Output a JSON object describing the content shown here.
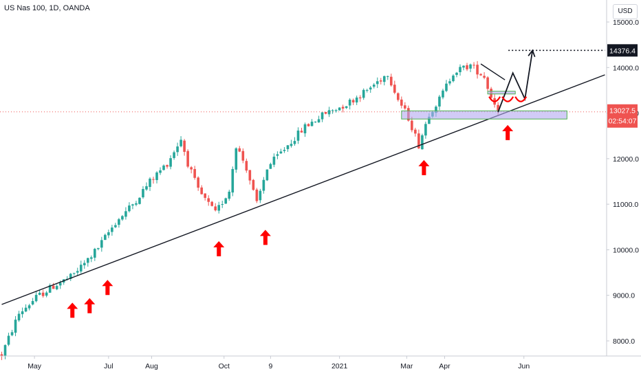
{
  "header": {
    "symbol": "US Nas 100, 1D, OANDA",
    "currency": "USD"
  },
  "chart_data": {
    "type": "candlestick",
    "y_axis": {
      "ticks": [
        15000,
        14000,
        13000,
        12000,
        11000,
        10000,
        9000,
        8000
      ],
      "labels": [
        "15000.0",
        "14000.0",
        "13000.0",
        "12000.0",
        "11000.0",
        "10000.0",
        "9000.0",
        "8000.0"
      ]
    },
    "x_axis": {
      "labels": [
        "May",
        "Jul",
        "Aug",
        "Oct",
        "9",
        "2021",
        "Mar",
        "Apr",
        "Jun"
      ]
    },
    "price_path": [
      [
        0,
        7700
      ],
      [
        5,
        8600
      ],
      [
        10,
        8950
      ],
      [
        15,
        9200
      ],
      [
        20,
        9400
      ],
      [
        24,
        9700
      ],
      [
        28,
        10050
      ],
      [
        33,
        10600
      ],
      [
        38,
        11000
      ],
      [
        43,
        11500
      ],
      [
        48,
        11900
      ],
      [
        52,
        12430
      ],
      [
        54,
        11900
      ],
      [
        57,
        11300
      ],
      [
        62,
        10800
      ],
      [
        66,
        11300
      ],
      [
        68,
        12300
      ],
      [
        71,
        11800
      ],
      [
        74,
        11000
      ],
      [
        77,
        11800
      ],
      [
        83,
        12300
      ],
      [
        88,
        12700
      ],
      [
        94,
        13000
      ],
      [
        100,
        13200
      ],
      [
        106,
        13500
      ],
      [
        112,
        13880
      ],
      [
        115,
        13300
      ],
      [
        118,
        12900
      ],
      [
        121,
        12300
      ],
      [
        124,
        13000
      ],
      [
        127,
        13300
      ],
      [
        131,
        13900
      ],
      [
        136,
        14050
      ],
      [
        140,
        13800
      ],
      [
        142,
        13350
      ],
      [
        144,
        13100
      ]
    ],
    "target_price": "14376.4",
    "current_price": "13027.5",
    "countdown": "02:54:07",
    "colors": {
      "up": "#26a69a",
      "down": "#ef5350",
      "target_badge": "#131722",
      "current_badge": "#ef5350",
      "zone_fill": "#b2a8f0",
      "arrow": "#ff0000"
    },
    "annotations": [
      {
        "type": "trendline",
        "x1": 0,
        "y1": 8800,
        "x2": 175,
        "y2": 13840
      },
      {
        "type": "trendline",
        "x1": 139,
        "y1": 14080,
        "x2": 146,
        "y2": 13730
      },
      {
        "type": "horizontal_dashed",
        "price": 14376.4,
        "x1": 147,
        "x2": 175
      },
      {
        "type": "zone",
        "x1": 116,
        "x2": 164,
        "y1": 12870,
        "y2": 13050
      },
      {
        "type": "zone",
        "x1": 141,
        "x2": 149,
        "y1": 13430,
        "y2": 13480
      },
      {
        "type": "projection",
        "points": [
          [
            144,
            13020
          ],
          [
            148.3,
            13880
          ],
          [
            151.8,
            13310
          ],
          [
            154,
            14376.4
          ]
        ]
      },
      {
        "type": "up_arrows",
        "x": [
          20.5,
          25.5,
          30.7,
          63,
          76.5,
          122.5,
          146.8
        ]
      },
      {
        "type": "arc",
        "x": [
          143,
          146.8,
          150.6
        ]
      }
    ]
  }
}
